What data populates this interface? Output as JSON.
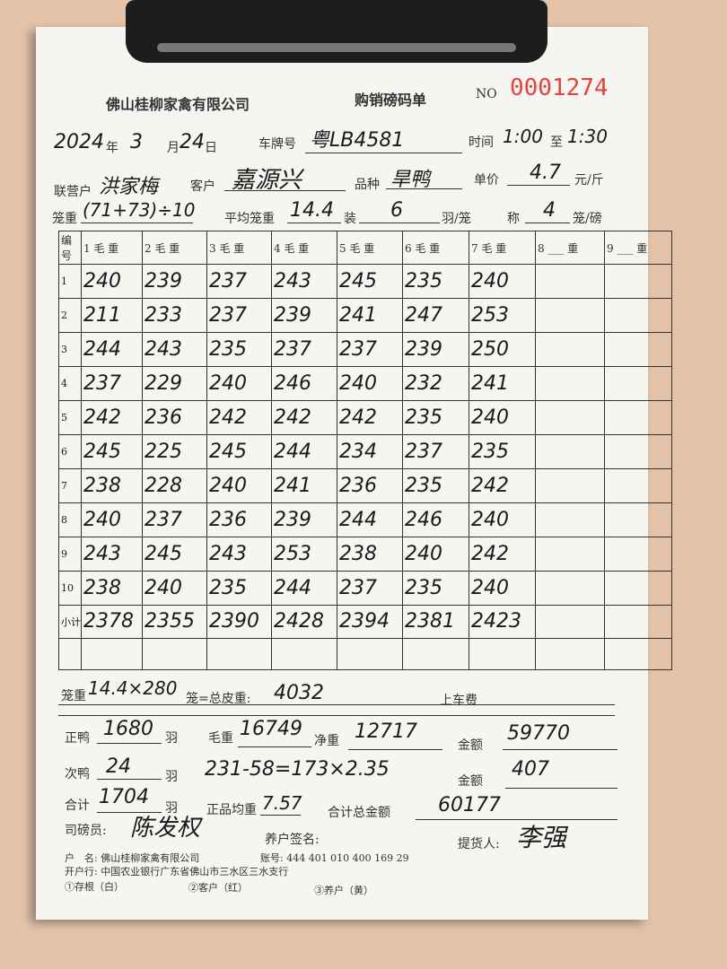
{
  "header": {
    "company": "佛山桂柳家禽有限公司",
    "form_title": "购销磅码单",
    "no_label": "NO",
    "serial": "0001274"
  },
  "info": {
    "year": "2024",
    "year_label": "年",
    "month": "3",
    "month_label": "月",
    "day": "24",
    "day_label": "日",
    "plate_label": "车牌号",
    "plate": "粤LB4581",
    "time_label": "时间",
    "time_from": "1:00",
    "time_to_label": "至",
    "time_to": "1:30",
    "partner_label": "联营户",
    "partner": "洪家梅",
    "customer_label": "客户",
    "customer": "嘉源兴",
    "variety_label": "品种",
    "variety": "旱鸭",
    "price_label": "单价",
    "price": "4.7",
    "price_unit": "元/斤",
    "cage_weight_label": "笼重",
    "cage_weight": "(71+73)÷10",
    "avg_cage_label": "平均笼重",
    "avg_cage": "14.4",
    "load_label": "装",
    "load": "6",
    "load_unit": "羽/笼",
    "scale_label": "称",
    "scale": "4",
    "scale_unit": "笼/磅"
  },
  "table": {
    "headers": [
      "编号",
      "1 毛 重",
      "2 毛 重",
      "3 毛 重",
      "4 毛 重",
      "5 毛 重",
      "6 毛 重",
      "7 毛 重",
      "8 ___ 重",
      "9 ___ 重"
    ],
    "rows": [
      [
        "1",
        "240",
        "239",
        "237",
        "243",
        "245",
        "235",
        "240",
        "",
        ""
      ],
      [
        "2",
        "211",
        "233",
        "237",
        "239",
        "241",
        "247",
        "253",
        "",
        ""
      ],
      [
        "3",
        "244",
        "243",
        "235",
        "237",
        "237",
        "239",
        "250",
        "",
        ""
      ],
      [
        "4",
        "237",
        "229",
        "240",
        "246",
        "240",
        "232",
        "241",
        "",
        ""
      ],
      [
        "5",
        "242",
        "236",
        "242",
        "242",
        "242",
        "235",
        "240",
        "",
        ""
      ],
      [
        "6",
        "245",
        "225",
        "245",
        "244",
        "234",
        "237",
        "235",
        "",
        ""
      ],
      [
        "7",
        "238",
        "228",
        "240",
        "241",
        "236",
        "235",
        "242",
        "",
        ""
      ],
      [
        "8",
        "240",
        "237",
        "236",
        "239",
        "244",
        "246",
        "240",
        "",
        ""
      ],
      [
        "9",
        "243",
        "245",
        "243",
        "253",
        "238",
        "240",
        "242",
        "",
        ""
      ],
      [
        "10",
        "238",
        "240",
        "235",
        "244",
        "237",
        "235",
        "240",
        "",
        ""
      ],
      [
        "小计",
        "2378",
        "2355",
        "2390",
        "2428",
        "2394",
        "2381",
        "2423",
        "",
        ""
      ],
      [
        "",
        "",
        "",
        "",
        "",
        "",
        "",
        "",
        "",
        ""
      ]
    ]
  },
  "summary": {
    "tare_label": "笼重",
    "tare_expr": "14.4×280",
    "tare_mid": "笼=总皮重:",
    "tare_total": "4032",
    "loading_fee_label": "上车费",
    "good_label": "正鸭",
    "good": "1680",
    "unit_yu": "羽",
    "gross_label": "毛重",
    "gross": "16749",
    "net_label": "净重",
    "net": "12717",
    "amount_label": "金额",
    "amount1": "59770",
    "second_label": "次鸭",
    "second": "24",
    "calc": "231-58=173×2.35",
    "amount2": "407",
    "total_label": "合计",
    "total": "1704",
    "avg_label": "正品均重",
    "avg": "7.57",
    "grand_label": "合计总金额",
    "grand": "60177",
    "weigher_label": "司磅员:",
    "weigher_sig": "陈发权",
    "farmer_label": "养户签名:",
    "picker_label": "提货人:",
    "picker_sig": "李强"
  },
  "footer": {
    "account_name": "户　名: 佛山桂柳家禽有限公司",
    "account_no": "账号: 444 401 010 400 169 29",
    "bank": "开户行: 中国农业银行广东省佛山市三水区三水支行",
    "copy1": "①存根（白）",
    "copy2": "②客户（红）",
    "copy3": "③养户（黄）"
  }
}
